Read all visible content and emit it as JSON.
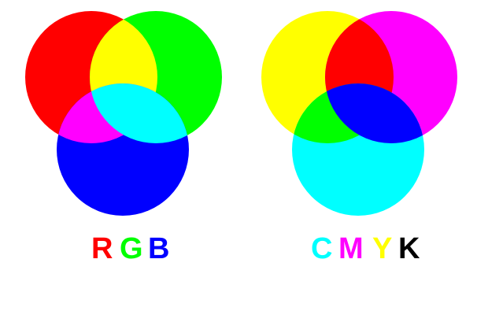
{
  "rgb": {
    "colors": {
      "red": "#ff0000",
      "green": "#00ff00",
      "blue": "#0000ff",
      "yellow": "#ffff00",
      "magenta": "#ff00ff",
      "cyan": "#00ffff",
      "white": "#ffffff"
    },
    "letters": [
      {
        "text": "R",
        "color": "#ff0000"
      },
      {
        "text": "G",
        "color": "#00ff00"
      },
      {
        "text": "B",
        "color": "#0000ff"
      }
    ]
  },
  "cmyk": {
    "colors": {
      "yellow": "#ffff00",
      "magenta": "#ff00ff",
      "cyan": "#00ffff",
      "red": "#ff0000",
      "green": "#00ff00",
      "blue": "#0000ff",
      "black": "#000000"
    },
    "letters": [
      {
        "text": "C",
        "color": "#00ffff"
      },
      {
        "text": "M",
        "color": "#ff00ff"
      },
      {
        "text": "Y",
        "color": "#ffff00"
      },
      {
        "text": "K",
        "color": "#000000"
      }
    ]
  }
}
